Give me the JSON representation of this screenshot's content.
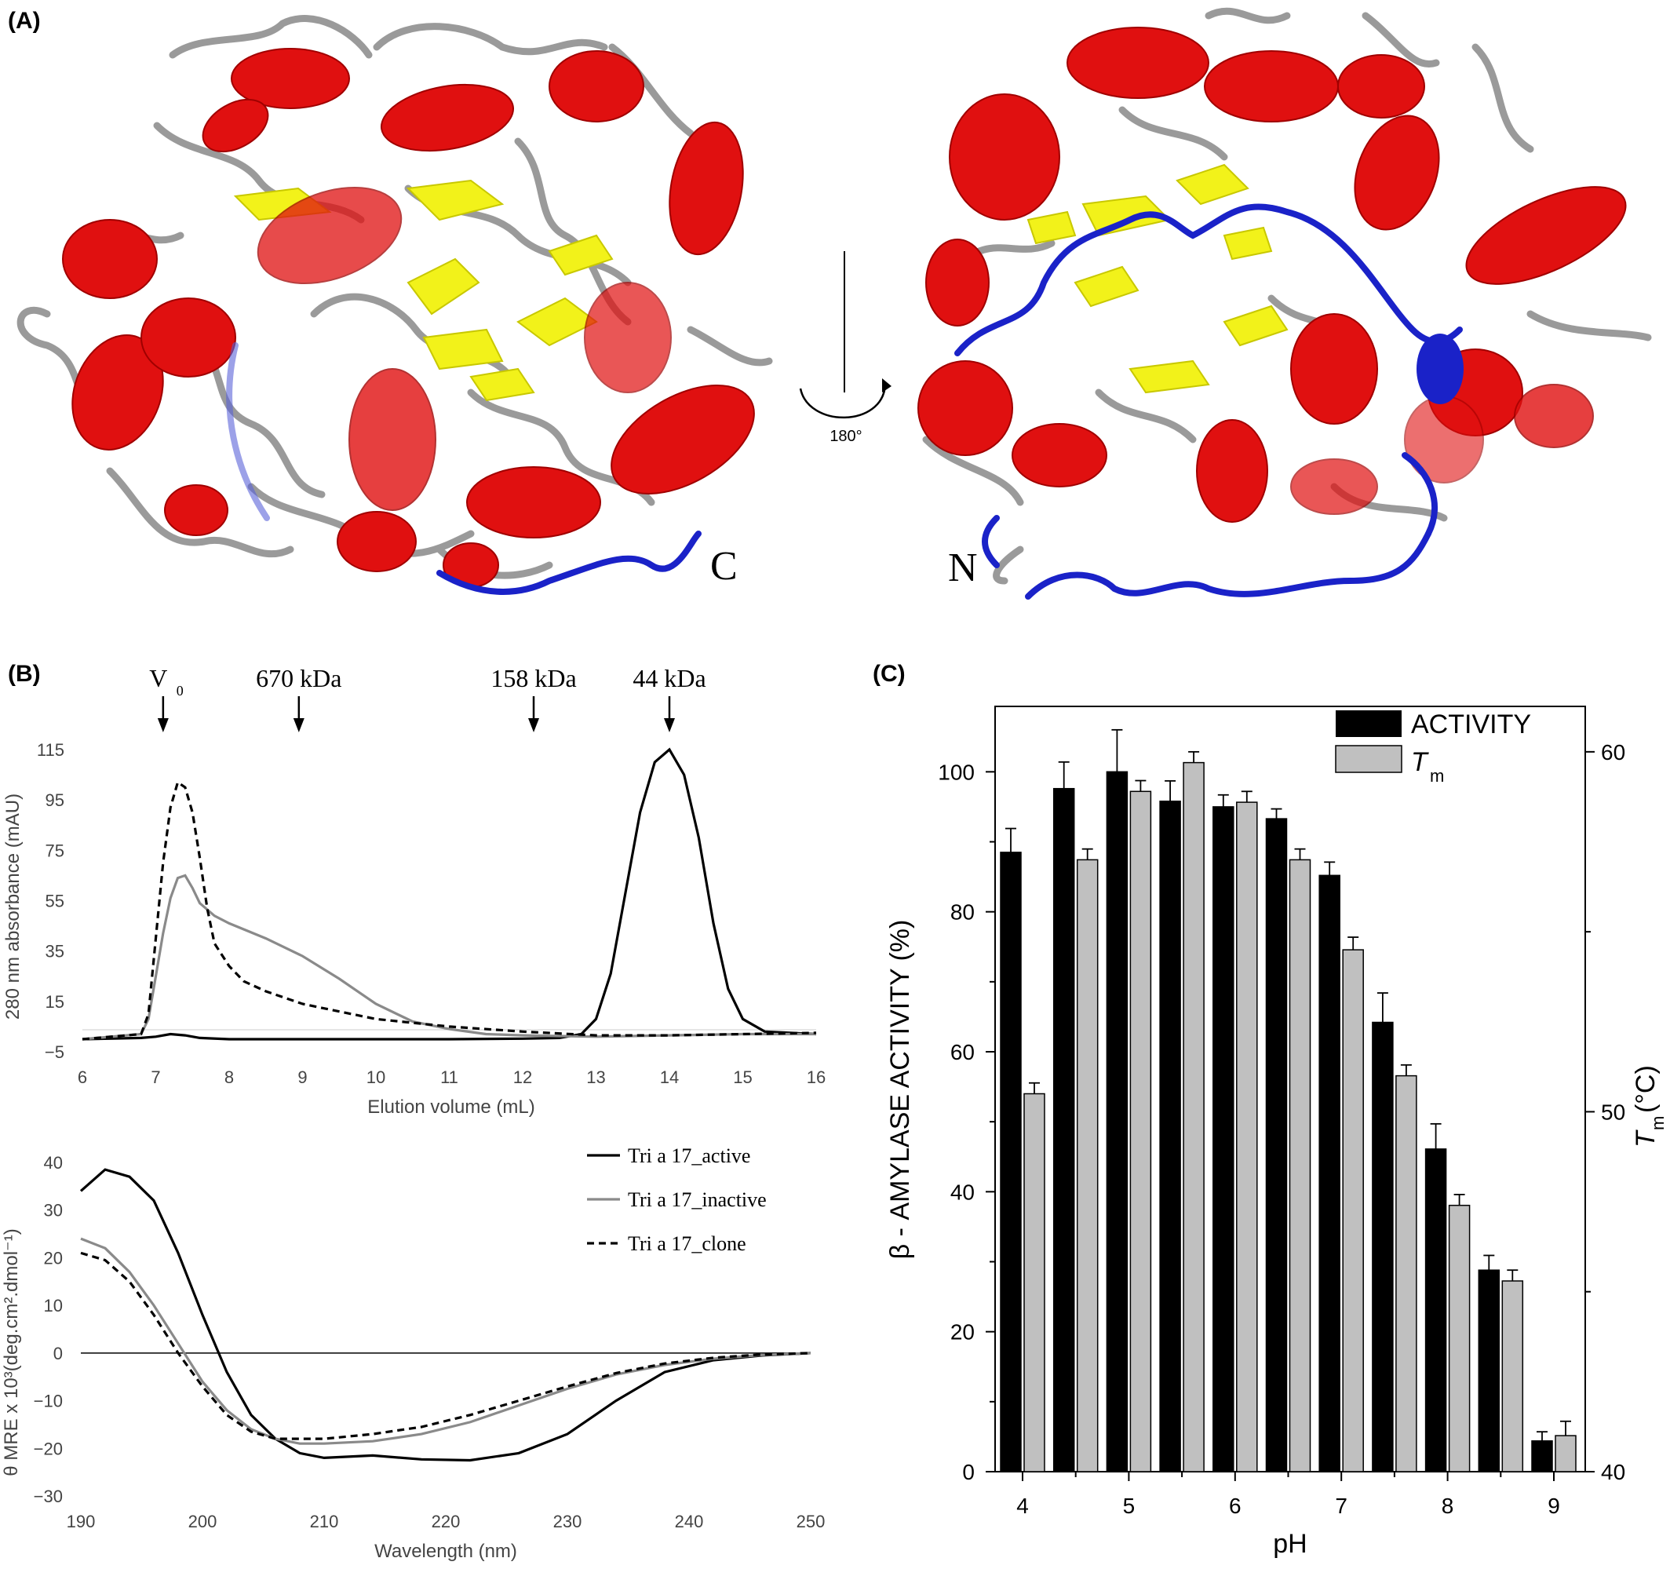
{
  "panels": {
    "a": "(A)",
    "b": "(B)",
    "c": "(C)"
  },
  "structure": {
    "rotation_label": "180°",
    "terminus_c": "C",
    "terminus_n": "N",
    "colors": {
      "helix": "#e01010",
      "sheet": "#f2f21a",
      "loop": "#9a9a9a",
      "terminal": "#1a22c8"
    }
  },
  "chart_data": [
    {
      "type": "line",
      "xlabel": "Elution volume (mL)",
      "ylabel": "280 nm absorbance (mAU)",
      "xlim": [
        6,
        16
      ],
      "ylim": [
        -5,
        115
      ],
      "xticks": [
        "6",
        "7",
        "8",
        "9",
        "10",
        "11",
        "12",
        "13",
        "14",
        "15",
        "16"
      ],
      "yticks": [
        "115",
        "95",
        "75",
        "55",
        "35",
        "15",
        "−5"
      ],
      "markers": [
        {
          "label": "V",
          "sub": "0",
          "x": 7.1
        },
        {
          "label": "670 kDa",
          "x": 8.95
        },
        {
          "label": "158 kDa",
          "x": 12.15
        },
        {
          "label": "44 kDa",
          "x": 14.0
        }
      ],
      "series": [
        {
          "color": "#000000",
          "dash": "solid",
          "x": [
            6,
            6.8,
            7.0,
            7.2,
            7.4,
            7.6,
            8,
            9,
            10,
            11,
            12,
            12.5,
            12.8,
            13.0,
            13.2,
            13.4,
            13.6,
            13.8,
            14.0,
            14.2,
            14.4,
            14.6,
            14.8,
            15.0,
            15.3,
            16
          ],
          "y": [
            0,
            0.5,
            1,
            2,
            1.5,
            0.5,
            0,
            0,
            0,
            0,
            0.2,
            0.5,
            2,
            8,
            26,
            58,
            90,
            110,
            115,
            105,
            80,
            46,
            20,
            8,
            3,
            2
          ]
        },
        {
          "color": "#8a8a8a",
          "dash": "solid",
          "x": [
            6,
            6.8,
            6.9,
            7.0,
            7.1,
            7.2,
            7.3,
            7.4,
            7.5,
            7.6,
            7.8,
            8.0,
            8.5,
            9.0,
            9.5,
            10.0,
            10.5,
            11.0,
            11.5,
            12.0,
            13.0,
            14.0,
            15.0,
            16.0
          ],
          "y": [
            0,
            2,
            8,
            25,
            42,
            56,
            64,
            65,
            60,
            54,
            49,
            46,
            40,
            33,
            24,
            14,
            7,
            4,
            2,
            1.5,
            1,
            1.5,
            2,
            2
          ]
        },
        {
          "color": "#000000",
          "dash": "dashed",
          "x": [
            6,
            6.8,
            6.9,
            7.0,
            7.1,
            7.2,
            7.3,
            7.4,
            7.5,
            7.6,
            7.7,
            7.8,
            8.0,
            8.2,
            8.5,
            9.0,
            9.5,
            10.0,
            11.0,
            12.0,
            13.0,
            14.0,
            15.0,
            16.0
          ],
          "y": [
            0,
            2,
            10,
            40,
            70,
            92,
            102,
            100,
            90,
            72,
            52,
            38,
            29,
            23,
            19,
            14,
            11,
            8,
            5,
            3,
            1.5,
            1.5,
            2,
            2.5
          ]
        }
      ]
    },
    {
      "type": "line",
      "xlabel": "Wavelength (nm)",
      "ylabel": "θ MRE x 10³(deg.cm².dmol⁻¹)",
      "xlim": [
        190,
        250
      ],
      "ylim": [
        -30,
        40
      ],
      "xticks": [
        "190",
        "200",
        "210",
        "220",
        "230",
        "240",
        "250"
      ],
      "yticks": [
        "40",
        "30",
        "20",
        "10",
        "0",
        "−10",
        "−20",
        "−30"
      ],
      "legend_position": "top-right",
      "series": [
        {
          "name": "Tri a 17_active",
          "color": "#000000",
          "dash": "solid",
          "x": [
            190,
            192,
            194,
            196,
            198,
            200,
            202,
            204,
            206,
            208,
            210,
            214,
            218,
            222,
            226,
            230,
            234,
            238,
            242,
            246,
            250
          ],
          "y": [
            34,
            38.5,
            37,
            32,
            21,
            8,
            -4,
            -13,
            -18,
            -21,
            -22,
            -21.5,
            -22.3,
            -22.5,
            -21,
            -17,
            -10,
            -4,
            -1.5,
            -0.5,
            0
          ]
        },
        {
          "name": "Tri a 17_inactive",
          "color": "#8a8a8a",
          "dash": "solid",
          "x": [
            190,
            192,
            194,
            196,
            198,
            200,
            202,
            204,
            206,
            208,
            210,
            214,
            218,
            222,
            226,
            230,
            234,
            238,
            242,
            246,
            250
          ],
          "y": [
            24,
            22,
            17,
            10,
            2,
            -6,
            -12,
            -16,
            -18,
            -19,
            -19,
            -18.5,
            -17,
            -14.5,
            -11,
            -7.5,
            -4.5,
            -2.5,
            -1.2,
            -0.4,
            0
          ]
        },
        {
          "name": "Tri a 17_clone",
          "color": "#000000",
          "dash": "dashed",
          "x": [
            190,
            192,
            194,
            196,
            198,
            200,
            202,
            204,
            206,
            208,
            210,
            214,
            218,
            222,
            226,
            230,
            234,
            238,
            242,
            246,
            250
          ],
          "y": [
            21,
            19.5,
            15,
            8,
            0,
            -7,
            -13,
            -16.5,
            -18,
            -18,
            -18,
            -17,
            -15.5,
            -13,
            -10,
            -7,
            -4.2,
            -2.2,
            -1,
            -0.3,
            0
          ]
        }
      ]
    },
    {
      "type": "bar",
      "xlabel": "pH",
      "ylabel": "β - AMYLASE ACTIVITY (%)",
      "ylabel_right": "T",
      "ylabel_right_sub": "m",
      "ylabel_right_unit": "(°C)",
      "xticks": [
        "4",
        "5",
        "6",
        "7",
        "8",
        "9"
      ],
      "yticks_left": [
        "0",
        "20",
        "40",
        "60",
        "80",
        "100"
      ],
      "yticks_right": [
        "40",
        "50",
        "60"
      ],
      "ylim_left": [
        0,
        108
      ],
      "ylim_right": [
        40,
        61
      ],
      "categories": [
        4.0,
        4.5,
        5.0,
        5.5,
        6.0,
        6.5,
        7.0,
        7.5,
        8.0,
        8.5,
        9.0
      ],
      "legend_position": "top-right",
      "series": [
        {
          "name": "ACTIVITY",
          "color": "#000000",
          "axis": "left",
          "values": [
            88.5,
            97.6,
            100,
            95.8,
            95,
            93.3,
            85.2,
            64.2,
            46.1,
            28.8,
            4.4
          ],
          "errors": [
            3.4,
            3.8,
            6,
            2.9,
            1.7,
            1.4,
            1.9,
            4.2,
            3.6,
            2.1,
            1.3
          ]
        },
        {
          "name": "T",
          "name_sub": "m",
          "color": "#c0c0c0",
          "axis": "right",
          "values": [
            50.5,
            57.0,
            58.9,
            59.7,
            58.6,
            57.0,
            54.5,
            51.0,
            47.4,
            45.3,
            41.0
          ],
          "errors": [
            0.3,
            0.3,
            0.3,
            0.3,
            0.3,
            0.3,
            0.35,
            0.3,
            0.3,
            0.3,
            0.4
          ]
        }
      ]
    }
  ]
}
